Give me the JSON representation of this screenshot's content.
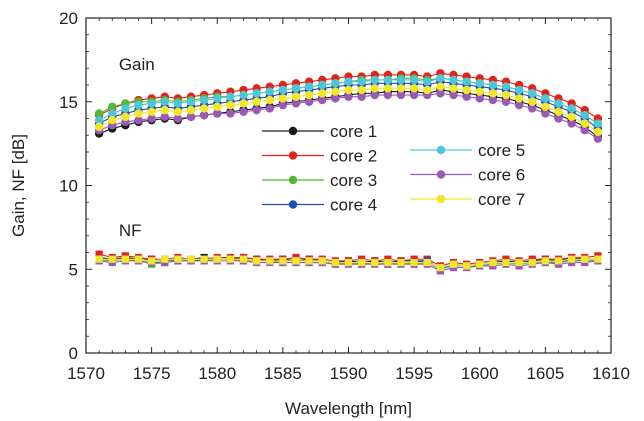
{
  "chart_data": {
    "type": "line",
    "xlabel": "Wavelength [nm]",
    "ylabel": "Gain, NF [dB]",
    "xlim": [
      1570,
      1610
    ],
    "ylim": [
      0,
      20
    ],
    "xticks": [
      1570,
      1575,
      1580,
      1585,
      1590,
      1595,
      1600,
      1605,
      1610
    ],
    "yticks": [
      0,
      5,
      10,
      15,
      20
    ],
    "grid": false,
    "legend_position": "center",
    "annotations": [
      {
        "text": "Gain",
        "x": 1572.5,
        "y": 16.9
      },
      {
        "text": "NF",
        "x": 1572.5,
        "y": 7.0
      }
    ],
    "x": [
      1571,
      1572,
      1573,
      1574,
      1575,
      1576,
      1577,
      1578,
      1579,
      1580,
      1581,
      1582,
      1583,
      1584,
      1585,
      1586,
      1587,
      1588,
      1589,
      1590,
      1591,
      1592,
      1593,
      1594,
      1595,
      1596,
      1597,
      1598,
      1599,
      1600,
      1601,
      1602,
      1603,
      1604,
      1605,
      1606,
      1607,
      1608,
      1609
    ],
    "series": [
      {
        "name": "core 1",
        "metric": "Gain",
        "color": "#1a1a1a",
        "values": [
          13.1,
          13.4,
          13.6,
          13.8,
          13.9,
          14.0,
          13.9,
          14.1,
          14.2,
          14.3,
          14.4,
          14.5,
          14.6,
          14.7,
          14.9,
          15.0,
          15.1,
          15.2,
          15.3,
          15.4,
          15.5,
          15.5,
          15.6,
          15.6,
          15.6,
          15.5,
          15.7,
          15.6,
          15.5,
          15.4,
          15.3,
          15.2,
          15.0,
          14.8,
          14.5,
          14.2,
          13.9,
          13.5,
          12.9
        ]
      },
      {
        "name": "core 2",
        "metric": "Gain",
        "color": "#e3221b",
        "values": [
          14.2,
          14.6,
          14.9,
          15.1,
          15.2,
          15.3,
          15.2,
          15.3,
          15.4,
          15.5,
          15.6,
          15.7,
          15.8,
          15.9,
          16.0,
          16.1,
          16.2,
          16.3,
          16.4,
          16.5,
          16.5,
          16.6,
          16.6,
          16.6,
          16.6,
          16.5,
          16.7,
          16.6,
          16.5,
          16.4,
          16.3,
          16.2,
          16.0,
          15.8,
          15.5,
          15.2,
          14.9,
          14.5,
          14.0
        ]
      },
      {
        "name": "core 3",
        "metric": "Gain",
        "color": "#52b833",
        "values": [
          14.3,
          14.7,
          14.9,
          15.0,
          15.0,
          15.1,
          15.0,
          15.1,
          15.2,
          15.3,
          15.3,
          15.4,
          15.5,
          15.6,
          15.7,
          15.8,
          15.9,
          16.0,
          16.1,
          16.2,
          16.3,
          16.3,
          16.3,
          16.4,
          16.4,
          16.3,
          16.4,
          16.3,
          16.2,
          16.1,
          16.0,
          15.9,
          15.7,
          15.5,
          15.2,
          14.9,
          14.6,
          14.2,
          13.7
        ]
      },
      {
        "name": "core 4",
        "metric": "Gain",
        "color": "#1f4fb5",
        "values": [
          13.7,
          14.1,
          14.3,
          14.5,
          14.6,
          14.7,
          14.6,
          14.7,
          14.8,
          14.9,
          15.0,
          15.1,
          15.2,
          15.3,
          15.5,
          15.6,
          15.7,
          15.8,
          15.9,
          16.0,
          16.0,
          16.1,
          16.1,
          16.1,
          16.1,
          16.0,
          16.2,
          16.1,
          16.0,
          15.9,
          15.8,
          15.7,
          15.5,
          15.3,
          15.0,
          14.7,
          14.4,
          14.0,
          13.4
        ]
      },
      {
        "name": "core 5",
        "metric": "Gain",
        "color": "#4ec6d8",
        "values": [
          13.9,
          14.3,
          14.6,
          14.8,
          14.9,
          15.0,
          14.9,
          15.0,
          15.1,
          15.2,
          15.3,
          15.4,
          15.5,
          15.6,
          15.7,
          15.8,
          15.9,
          16.0,
          16.1,
          16.2,
          16.2,
          16.3,
          16.3,
          16.3,
          16.3,
          16.2,
          16.4,
          16.3,
          16.2,
          16.1,
          16.0,
          15.9,
          15.7,
          15.5,
          15.2,
          14.9,
          14.6,
          14.2,
          13.7
        ]
      },
      {
        "name": "core 6",
        "metric": "Gain",
        "color": "#9b59b6",
        "values": [
          13.3,
          13.6,
          13.8,
          13.9,
          14.0,
          14.1,
          14.0,
          14.1,
          14.2,
          14.3,
          14.3,
          14.4,
          14.5,
          14.6,
          14.8,
          14.9,
          15.0,
          15.1,
          15.2,
          15.3,
          15.3,
          15.4,
          15.4,
          15.4,
          15.4,
          15.4,
          15.5,
          15.4,
          15.3,
          15.2,
          15.1,
          15.0,
          14.8,
          14.6,
          14.3,
          14.0,
          13.7,
          13.3,
          12.8
        ]
      },
      {
        "name": "core 7",
        "metric": "Gain",
        "color": "#f2e62a",
        "values": [
          13.5,
          13.9,
          14.1,
          14.3,
          14.4,
          14.5,
          14.4,
          14.5,
          14.6,
          14.7,
          14.8,
          14.9,
          15.0,
          15.1,
          15.2,
          15.3,
          15.4,
          15.5,
          15.6,
          15.7,
          15.7,
          15.8,
          15.8,
          15.8,
          15.8,
          15.7,
          15.9,
          15.8,
          15.7,
          15.6,
          15.5,
          15.4,
          15.2,
          15.0,
          14.7,
          14.4,
          14.1,
          13.7,
          13.2
        ]
      },
      {
        "name": "core 1",
        "metric": "NF",
        "color": "#1a1a1a",
        "values": [
          5.7,
          5.6,
          5.7,
          5.6,
          5.6,
          5.5,
          5.6,
          5.6,
          5.7,
          5.6,
          5.6,
          5.7,
          5.6,
          5.5,
          5.6,
          5.5,
          5.6,
          5.5,
          5.4,
          5.5,
          5.4,
          5.5,
          5.4,
          5.5,
          5.5,
          5.5,
          5.0,
          5.3,
          5.2,
          5.3,
          5.4,
          5.5,
          5.4,
          5.5,
          5.6,
          5.5,
          5.7,
          5.6,
          5.6
        ]
      },
      {
        "name": "core 2",
        "metric": "NF",
        "color": "#e3221b",
        "values": [
          5.9,
          5.7,
          5.8,
          5.7,
          5.6,
          5.6,
          5.7,
          5.6,
          5.6,
          5.7,
          5.7,
          5.7,
          5.6,
          5.6,
          5.6,
          5.7,
          5.6,
          5.6,
          5.5,
          5.5,
          5.6,
          5.5,
          5.6,
          5.5,
          5.6,
          5.6,
          5.2,
          5.4,
          5.3,
          5.4,
          5.5,
          5.6,
          5.5,
          5.6,
          5.6,
          5.6,
          5.7,
          5.7,
          5.8
        ]
      },
      {
        "name": "core 3",
        "metric": "NF",
        "color": "#52b833",
        "values": [
          5.5,
          5.5,
          5.6,
          5.5,
          5.3,
          5.4,
          5.5,
          5.5,
          5.5,
          5.6,
          5.6,
          5.5,
          5.5,
          5.5,
          5.4,
          5.4,
          5.4,
          5.4,
          5.3,
          5.4,
          5.3,
          5.4,
          5.3,
          5.4,
          5.3,
          5.4,
          5.1,
          5.2,
          5.2,
          5.2,
          5.3,
          5.4,
          5.3,
          5.4,
          5.4,
          5.4,
          5.5,
          5.5,
          5.5
        ]
      },
      {
        "name": "core 4",
        "metric": "NF",
        "color": "#1f4fb5",
        "values": [
          5.6,
          5.6,
          5.6,
          5.6,
          5.5,
          5.5,
          5.6,
          5.5,
          5.6,
          5.6,
          5.6,
          5.6,
          5.5,
          5.5,
          5.5,
          5.5,
          5.5,
          5.5,
          5.4,
          5.4,
          5.4,
          5.4,
          5.4,
          5.4,
          5.4,
          5.5,
          5.0,
          5.3,
          5.2,
          5.3,
          5.4,
          5.4,
          5.4,
          5.4,
          5.5,
          5.4,
          5.6,
          5.5,
          5.6
        ]
      },
      {
        "name": "core 5",
        "metric": "NF",
        "color": "#4ec6d8",
        "values": [
          5.6,
          5.5,
          5.6,
          5.6,
          5.5,
          5.5,
          5.5,
          5.6,
          5.6,
          5.6,
          5.6,
          5.6,
          5.5,
          5.5,
          5.5,
          5.5,
          5.5,
          5.5,
          5.4,
          5.4,
          5.4,
          5.4,
          5.3,
          5.4,
          5.4,
          5.4,
          5.0,
          5.2,
          5.2,
          5.3,
          5.3,
          5.4,
          5.3,
          5.4,
          5.5,
          5.4,
          5.5,
          5.5,
          5.6
        ]
      },
      {
        "name": "core 6",
        "metric": "NF",
        "color": "#9b59b6",
        "values": [
          5.5,
          5.4,
          5.5,
          5.5,
          5.4,
          5.4,
          5.5,
          5.5,
          5.5,
          5.5,
          5.5,
          5.5,
          5.4,
          5.4,
          5.4,
          5.4,
          5.4,
          5.4,
          5.3,
          5.3,
          5.3,
          5.3,
          5.3,
          5.3,
          5.3,
          5.3,
          4.9,
          5.1,
          5.1,
          5.2,
          5.2,
          5.3,
          5.2,
          5.3,
          5.4,
          5.3,
          5.4,
          5.4,
          5.5
        ]
      },
      {
        "name": "core 7",
        "metric": "NF",
        "color": "#f2e62a",
        "values": [
          5.6,
          5.6,
          5.6,
          5.6,
          5.5,
          5.6,
          5.6,
          5.6,
          5.6,
          5.6,
          5.6,
          5.6,
          5.5,
          5.5,
          5.5,
          5.5,
          5.5,
          5.5,
          5.4,
          5.4,
          5.4,
          5.4,
          5.4,
          5.4,
          5.4,
          5.4,
          5.1,
          5.3,
          5.2,
          5.3,
          5.4,
          5.4,
          5.4,
          5.4,
          5.5,
          5.5,
          5.6,
          5.6,
          5.6
        ]
      }
    ],
    "legend": [
      {
        "label": "core 1",
        "color": "#1a1a1a"
      },
      {
        "label": "core 2",
        "color": "#e3221b"
      },
      {
        "label": "core 3",
        "color": "#52b833"
      },
      {
        "label": "core 4",
        "color": "#1f4fb5"
      },
      {
        "label": "core 5",
        "color": "#4ec6d8"
      },
      {
        "label": "core 6",
        "color": "#9b59b6"
      },
      {
        "label": "core 7",
        "color": "#f2e62a"
      }
    ]
  }
}
